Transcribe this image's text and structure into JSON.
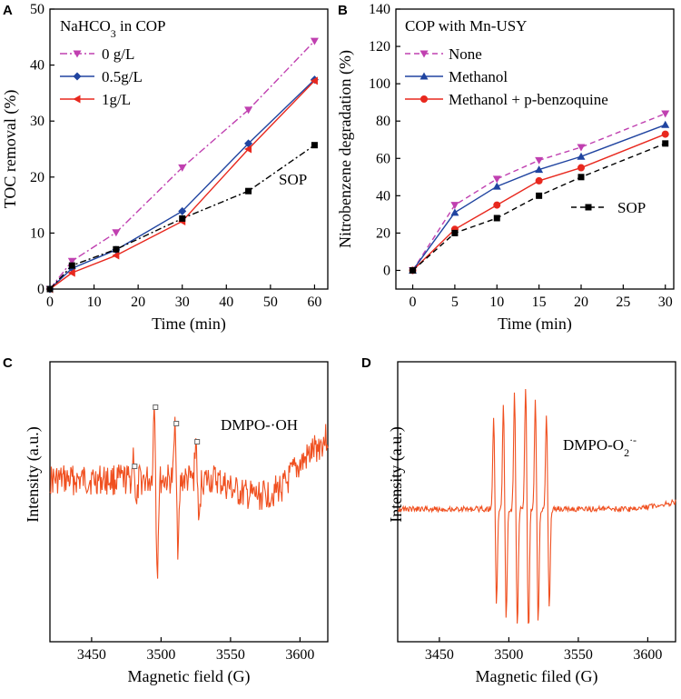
{
  "chart_data": [
    {
      "panel": "A",
      "type": "line",
      "title": "",
      "legend_title_html": "NaHCO<tspan baseline-shift=\"sub\" font-size=\"12\">3</tspan> in COP",
      "legend_title": "NaHCO3 in COP",
      "xlabel": "Time (min)",
      "ylabel": "TOC removal (%)",
      "xlim": [
        0,
        63
      ],
      "ylim": [
        0,
        50
      ],
      "xticks": [
        0,
        10,
        20,
        30,
        40,
        50,
        60
      ],
      "yticks": [
        0,
        10,
        20,
        30,
        40,
        50
      ],
      "legend_position": "top-left",
      "series": [
        {
          "name": "0 g/L",
          "color": "#c040b0",
          "dash": "8,3,2,3",
          "marker": "triangle-down",
          "x": [
            0,
            5,
            15,
            30,
            45,
            60
          ],
          "y": [
            0,
            5.0,
            10.1,
            21.7,
            32.0,
            44.3
          ]
        },
        {
          "name": "0.5g/L",
          "color": "#2044a0",
          "dash": "",
          "marker": "diamond",
          "x": [
            0,
            5,
            15,
            30,
            45,
            60
          ],
          "y": [
            0,
            3.7,
            7.0,
            13.9,
            26.0,
            37.4
          ]
        },
        {
          "name": "1g/L",
          "color": "#e8281e",
          "dash": "",
          "marker": "triangle-left",
          "x": [
            0,
            5,
            15,
            30,
            45,
            60
          ],
          "y": [
            0,
            2.9,
            6.0,
            12.1,
            25.0,
            37.2
          ]
        },
        {
          "name": "SOP",
          "color": "#000000",
          "dash": "7,3,2,3",
          "marker": "square",
          "x": [
            0,
            5,
            15,
            30,
            45,
            60
          ],
          "y": [
            0,
            4.2,
            7.1,
            12.6,
            17.5,
            25.7
          ]
        }
      ],
      "annotations": [
        "SOP"
      ]
    },
    {
      "panel": "B",
      "type": "line",
      "title": "",
      "legend_title": "COP with Mn-USY",
      "xlabel": "Time (min)",
      "ylabel": "Nitrobenzene degradation (%)",
      "xlim": [
        -2,
        31
      ],
      "ylim": [
        -10,
        140
      ],
      "xticks": [
        0,
        5,
        10,
        15,
        20,
        25,
        30
      ],
      "yticks": [
        0,
        20,
        40,
        60,
        80,
        100,
        120,
        140
      ],
      "legend_position": "top-left",
      "series": [
        {
          "name": "None",
          "color": "#c040b0",
          "dash": "6,4",
          "marker": "triangle-down",
          "x": [
            0,
            5,
            10,
            15,
            20,
            30
          ],
          "y": [
            0,
            35,
            49,
            59,
            66,
            84
          ]
        },
        {
          "name": "Methanol",
          "color": "#2044a0",
          "dash": "",
          "marker": "triangle-up",
          "x": [
            0,
            5,
            10,
            15,
            20,
            30
          ],
          "y": [
            0,
            31,
            45,
            54,
            61,
            78
          ]
        },
        {
          "name": "Methanol + p-benzoquine",
          "color": "#e8281e",
          "dash": "",
          "marker": "circle",
          "x": [
            0,
            5,
            10,
            15,
            20,
            30
          ],
          "y": [
            0,
            22,
            35,
            48,
            55,
            73
          ]
        },
        {
          "name": "SOP",
          "color": "#000000",
          "dash": "6,4",
          "marker": "square",
          "x": [
            0,
            5,
            10,
            15,
            20,
            30
          ],
          "y": [
            0,
            20,
            28,
            40,
            50,
            68
          ]
        }
      ],
      "annotations": [
        "SOP"
      ]
    },
    {
      "panel": "C",
      "type": "line",
      "title": "",
      "xlabel": "Magnetic field (G)",
      "ylabel": "Intensity (a.u.)",
      "xlim": [
        3420,
        3620
      ],
      "xticks": [
        3450,
        3500,
        3550,
        3600
      ],
      "label": "DMPO-·OH",
      "color": "#f05020",
      "peak_markers_x": [
        3481,
        3496,
        3511,
        3526
      ],
      "description_only": false
    },
    {
      "panel": "D",
      "type": "line",
      "title": "",
      "xlabel": "Magnetic filed (G)",
      "ylabel": "Intensity (a.u.)",
      "xlim": [
        3420,
        3620
      ],
      "xticks": [
        3450,
        3500,
        3550,
        3600
      ],
      "label": "DMPO-O2·-",
      "color": "#f05020",
      "peaks_x": [
        3490,
        3497,
        3505,
        3513,
        3520,
        3528
      ]
    }
  ],
  "panels": {
    "a": {
      "letter": "A"
    },
    "b": {
      "letter": "B"
    },
    "c": {
      "letter": "C"
    },
    "d": {
      "letter": "D"
    }
  }
}
